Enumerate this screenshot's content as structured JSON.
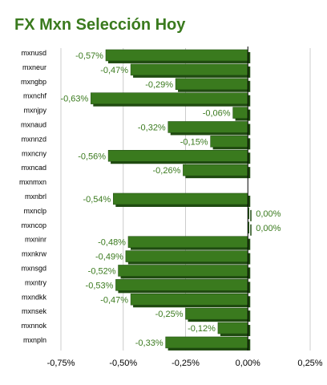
{
  "chart_data": {
    "type": "bar",
    "orientation": "horizontal",
    "title": "FX Mxn Selección Hoy",
    "categories": [
      "mxnusd",
      "mxneur",
      "mxngbp",
      "mxnchf",
      "mxnjpy",
      "mxnaud",
      "mxnnzd",
      "mxncny",
      "mxncad",
      "mxnmxn",
      "mxnbrl",
      "mxnclp",
      "mxncop",
      "mxninr",
      "mxnkrw",
      "mxnsgd",
      "mxntry",
      "mxndkk",
      "mxnsek",
      "mxnnok",
      "mxnpln"
    ],
    "values": [
      -0.57,
      -0.47,
      -0.29,
      -0.63,
      -0.06,
      -0.32,
      -0.15,
      -0.56,
      -0.26,
      null,
      -0.54,
      0.0,
      0.0,
      -0.48,
      -0.49,
      -0.52,
      -0.53,
      -0.47,
      -0.25,
      -0.12,
      -0.33
    ],
    "labels": [
      "-0,57%",
      "-0,47%",
      "-0,29%",
      "-0,63%",
      "-0,06%",
      "-0,32%",
      "-0,15%",
      "-0,56%",
      "-0,26%",
      "",
      "-0,54%",
      "0,00%",
      "0,00%",
      "-0,48%",
      "-0,49%",
      "-0,52%",
      "-0,53%",
      "-0,47%",
      "-0,25%",
      "-0,12%",
      "-0,33%"
    ],
    "xlim": [
      -0.75,
      0.25
    ],
    "xticks": [
      -0.75,
      -0.5,
      -0.25,
      0.0,
      0.25
    ],
    "xtick_labels": [
      "-0,75%",
      "-0,50%",
      "-0,25%",
      "0,00%",
      "0,25%"
    ],
    "grid": true,
    "legend": "none",
    "colors": {
      "bar": "#3a7a1e",
      "bar_top": "#5a9a3a",
      "bar_shadow": "#1f4a10",
      "title": "#3a7a1e",
      "label": "#3a7a1e",
      "grid": "#cccccc",
      "axis": "#000000"
    }
  }
}
